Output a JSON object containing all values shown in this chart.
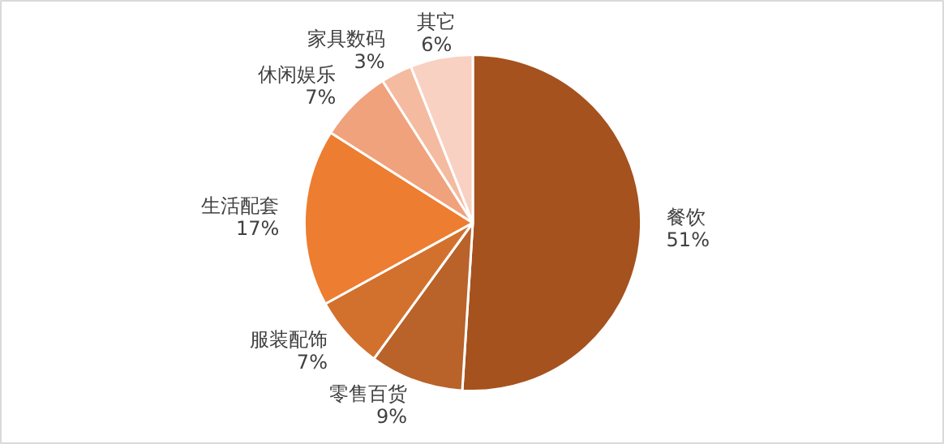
{
  "chart_data": {
    "type": "pie",
    "categories": [
      "餐饮",
      "零售百货",
      "服装配饰",
      "生活配套",
      "休闲娱乐",
      "家具数码",
      "其它"
    ],
    "values": [
      51,
      9,
      7,
      17,
      7,
      3,
      6
    ],
    "value_labels": [
      "51%",
      "9%",
      "7%",
      "17%",
      "7%",
      "3%",
      "6%"
    ],
    "colors": [
      "#a5521f",
      "#b9622a",
      "#d2712e",
      "#ed7d31",
      "#f0a27c",
      "#f4bba0",
      "#f8d1c3"
    ]
  }
}
